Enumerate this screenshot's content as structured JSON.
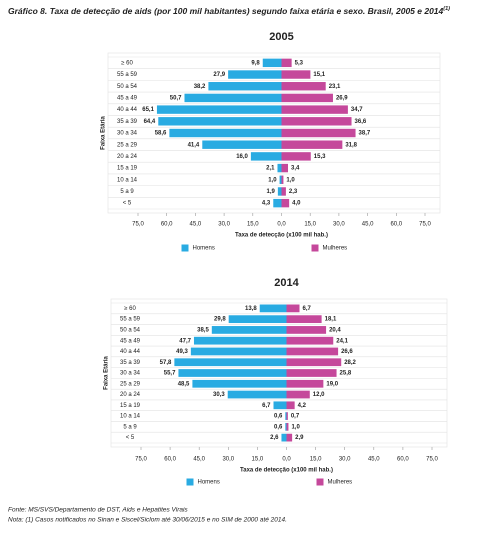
{
  "header": {
    "title": "Gráfico 8. Taxa de detecção de aids (por 100 mil habitantes) segundo faixa etária e sexo. Brasil, 2005 e 2014",
    "title_superscript": "(1)"
  },
  "chart_data": [
    {
      "type": "pyramid",
      "title": "2005",
      "x_label": "Taxa de detecção (x100 mil hab.)",
      "y_label": "Faixa Etária",
      "categories": [
        "≥ 60",
        "55 a 59",
        "50 a 54",
        "45 a 49",
        "40 a 44",
        "35 a 39",
        "30 a 34",
        "25 a 29",
        "20 a 24",
        "15 a 19",
        "10 a 14",
        "5 a 9",
        "< 5"
      ],
      "series": [
        {
          "name": "Homens",
          "color": "#29abe2",
          "side": "left",
          "values": [
            9.8,
            27.9,
            38.2,
            50.7,
            65.1,
            64.4,
            58.6,
            41.4,
            16.0,
            2.1,
            1.0,
            1.9,
            4.3
          ],
          "value_labels": [
            "9,8",
            "27,9",
            "38,2",
            "50,7",
            "65,1",
            "64,4",
            "58,6",
            "41,4",
            "16,0",
            "2,1",
            "1,0",
            "1,9",
            "4,3"
          ]
        },
        {
          "name": "Mulheres",
          "color": "#c5489b",
          "side": "right",
          "values": [
            5.3,
            15.1,
            23.1,
            26.9,
            34.7,
            36.6,
            38.7,
            31.8,
            15.3,
            3.4,
            1.0,
            2.3,
            4.0
          ],
          "value_labels": [
            "5,3",
            "15,1",
            "23,1",
            "26,9",
            "34,7",
            "36,6",
            "38,7",
            "31,8",
            "15,3",
            "3,4",
            "1,0",
            "2,3",
            "4,0"
          ]
        }
      ],
      "xlim": [
        -75,
        75
      ],
      "xticks": [
        {
          "value": -75,
          "label": "75,0"
        },
        {
          "value": -60,
          "label": "60,0"
        },
        {
          "value": -45,
          "label": "45,0"
        },
        {
          "value": -30,
          "label": "30,0"
        },
        {
          "value": -15,
          "label": "15,0"
        },
        {
          "value": 0,
          "label": "0,0"
        },
        {
          "value": 15,
          "label": "15,0"
        },
        {
          "value": 30,
          "label": "30,0"
        },
        {
          "value": 45,
          "label": "45,0"
        },
        {
          "value": 60,
          "label": "60,0"
        },
        {
          "value": 75,
          "label": "75,0"
        }
      ]
    },
    {
      "type": "pyramid",
      "title": "2014",
      "x_label": "Taxa de detecção (x100 mil hab.)",
      "y_label": "Faixa Etária",
      "categories": [
        "≥ 60",
        "55 a 59",
        "50 a 54",
        "45 a 49",
        "40 a 44",
        "35 a 39",
        "30 a 34",
        "25 a 29",
        "20 a 24",
        "15 a 19",
        "10 a 14",
        "5 a 9",
        "< 5"
      ],
      "series": [
        {
          "name": "Homens",
          "color": "#29abe2",
          "side": "left",
          "values": [
            13.8,
            29.8,
            38.5,
            47.7,
            49.3,
            57.8,
            55.7,
            48.5,
            30.3,
            6.7,
            0.6,
            0.6,
            2.6
          ],
          "value_labels": [
            "13,8",
            "29,8",
            "38,5",
            "47,7",
            "49,3",
            "57,8",
            "55,7",
            "48,5",
            "30,3",
            "6,7",
            "0,6",
            "0,6",
            "2,6"
          ]
        },
        {
          "name": "Mulheres",
          "color": "#c5489b",
          "side": "right",
          "values": [
            6.7,
            18.1,
            20.4,
            24.1,
            26.6,
            28.2,
            25.8,
            19.0,
            12.0,
            4.2,
            0.7,
            1.0,
            2.9
          ],
          "value_labels": [
            "6,7",
            "18,1",
            "20,4",
            "24,1",
            "26,6",
            "28,2",
            "25,8",
            "19,0",
            "12,0",
            "4,2",
            "0,7",
            "1,0",
            "2,9"
          ]
        }
      ],
      "xlim": [
        -75,
        75
      ],
      "xticks": [
        {
          "value": -75,
          "label": "75,0"
        },
        {
          "value": -60,
          "label": "60,0"
        },
        {
          "value": -45,
          "label": "45,0"
        },
        {
          "value": -30,
          "label": "30,0"
        },
        {
          "value": -15,
          "label": "15,0"
        },
        {
          "value": 0,
          "label": "0,0"
        },
        {
          "value": 15,
          "label": "15,0"
        },
        {
          "value": 30,
          "label": "30,0"
        },
        {
          "value": 45,
          "label": "45,0"
        },
        {
          "value": 60,
          "label": "60,0"
        },
        {
          "value": 75,
          "label": "75,0"
        }
      ]
    }
  ],
  "footer": {
    "source": "Fonte: MS/SVS/Departamento de DST, Aids e Hepatites Virais",
    "note": "Nota: (1) Casos notificados no Sinan e Siscel/Siclom até 30/06/2015 e no SIM de 2000 até 2014."
  }
}
